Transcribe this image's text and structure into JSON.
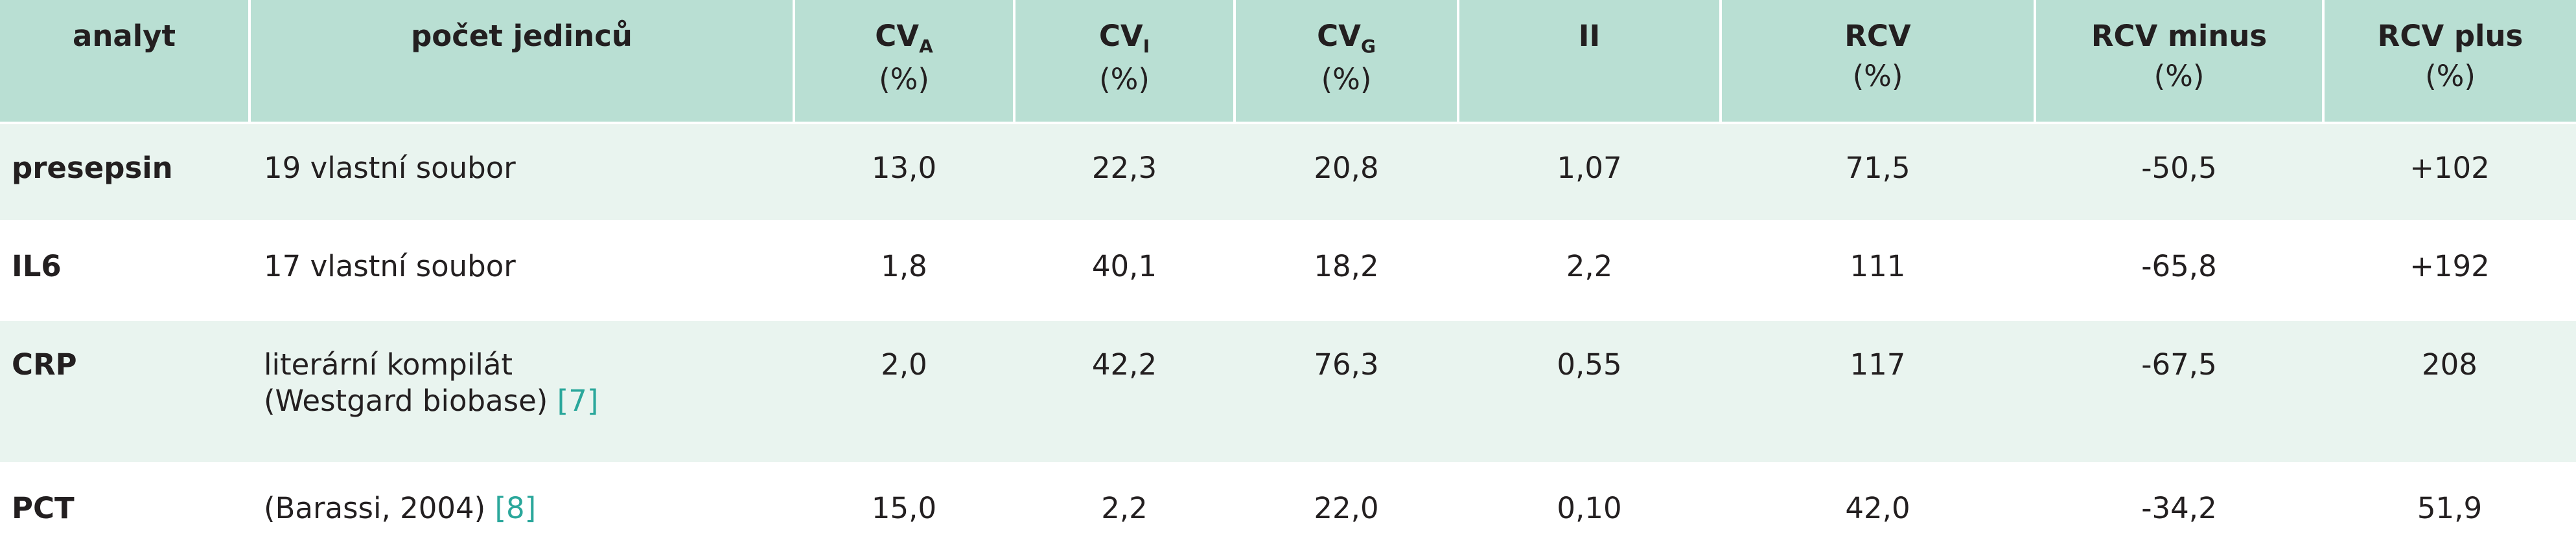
{
  "header": {
    "analyte": "analyt",
    "subjects": "počet jedinců",
    "cva_main": "CV",
    "cva_sub": "A",
    "cvi_main": "CV",
    "cvi_sub": "I",
    "cvg_main": "CV",
    "cvg_sub": "G",
    "ii": "II",
    "rcv": "RCV",
    "rcv_minus": "RCV minus",
    "rcv_plus": "RCV plus",
    "unit": "(%)"
  },
  "rows": [
    {
      "analyte": "presepsin",
      "subjects": "19 vlastní soubor",
      "subjects_line2": "",
      "ref": "",
      "cva": "13,0",
      "cvi": "22,3",
      "cvg": "20,8",
      "ii": "1,07",
      "rcv": "71,5",
      "rcv_minus": "-50,5",
      "rcv_plus": "+102"
    },
    {
      "analyte": "IL6",
      "subjects": "17 vlastní soubor",
      "subjects_line2": "",
      "ref": "",
      "cva": "1,8",
      "cvi": "40,1",
      "cvg": "18,2",
      "ii": "2,2",
      "rcv": "111",
      "rcv_minus": "-65,8",
      "rcv_plus": "+192"
    },
    {
      "analyte": "CRP",
      "subjects": "literární kompilát",
      "subjects_line2": "(Westgard biobase)",
      "ref": "[7]",
      "cva": "2,0",
      "cvi": "42,2",
      "cvg": "76,3",
      "ii": "0,55",
      "rcv": "117",
      "rcv_minus": "-67,5",
      "rcv_plus": "208"
    },
    {
      "analyte": "PCT",
      "subjects": "(Barassi, 2004)",
      "subjects_line2": "",
      "ref": "[8]",
      "cva": "15,0",
      "cvi": "2,2",
      "cvg": "22,0",
      "ii": "0,10",
      "rcv": "42,0",
      "rcv_minus": "-34,2",
      "rcv_plus": "51,9"
    }
  ]
}
